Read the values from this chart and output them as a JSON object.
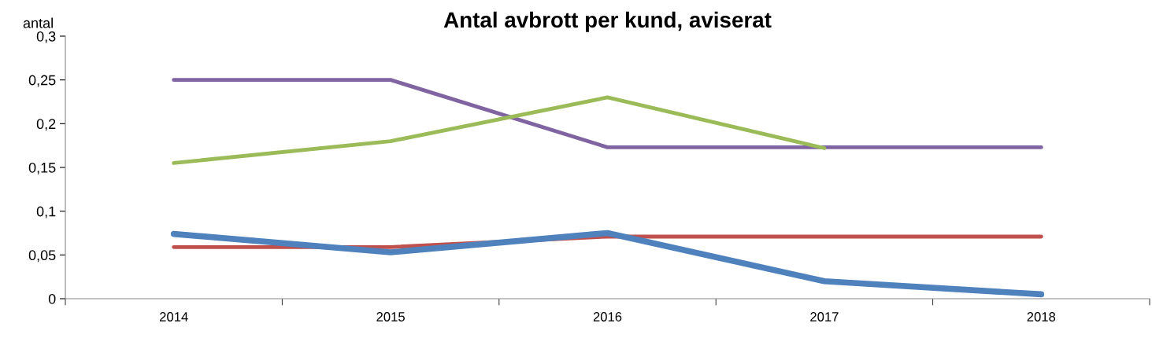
{
  "chart_data": {
    "type": "line",
    "title": "Antal avbrott per kund, aviserat",
    "ylabel": "antal",
    "categories": [
      "2014",
      "2015",
      "2016",
      "2017",
      "2018"
    ],
    "series": [
      {
        "color": "#4f81bd",
        "values": [
          0.074,
          0.053,
          0.075,
          0.02,
          0.005
        ]
      },
      {
        "color": "#c0504d",
        "values": [
          0.059,
          0.059,
          0.071,
          0.071,
          0.071
        ]
      },
      {
        "color": "#9bbb59",
        "values": [
          0.155,
          0.18,
          0.23,
          0.172,
          null
        ]
      },
      {
        "color": "#8064a2",
        "values": [
          0.25,
          0.25,
          0.173,
          0.173,
          0.173
        ]
      }
    ],
    "ylim": [
      0,
      0.3
    ],
    "yticks": [
      0,
      {
        "value": 0.05,
        "label": "0,05"
      },
      {
        "value": 0.1,
        "label": "0,1"
      },
      {
        "value": 0.15,
        "label": "0,15"
      },
      {
        "value": 0.2,
        "label": "0,2"
      },
      {
        "value": 0.25,
        "label": "0,25"
      },
      {
        "value": 0.3,
        "label": "0,3"
      }
    ],
    "grid": false,
    "legend": false,
    "marker": "none",
    "line_style": "solid"
  }
}
